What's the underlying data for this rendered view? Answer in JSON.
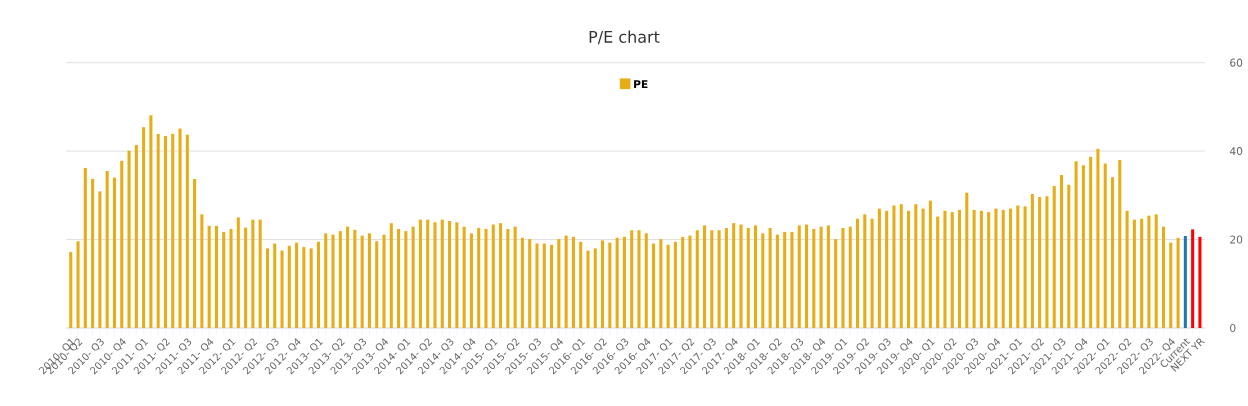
{
  "chart_data": {
    "type": "bar",
    "title": "P/E chart",
    "categories": [
      "2010- Q1",
      "2010- Q2",
      null,
      null,
      "2010- Q3",
      null,
      null,
      "2010- Q4",
      null,
      null,
      "2011- Q1",
      null,
      null,
      "2011- Q2",
      null,
      null,
      "2011- Q3",
      null,
      null,
      "2011- Q4",
      null,
      null,
      "2012- Q1",
      null,
      null,
      "2012- Q2",
      null,
      null,
      "2012- Q3",
      null,
      null,
      "2012- Q4",
      null,
      null,
      "2013- Q1",
      null,
      null,
      "2013- Q2",
      null,
      null,
      "2013- Q3",
      null,
      null,
      "2013- Q4",
      null,
      null,
      "2014- Q1",
      null,
      null,
      "2014- Q2",
      null,
      null,
      "2014- Q3",
      null,
      null,
      "2014- Q4",
      null,
      null,
      "2015- Q1",
      null,
      null,
      "2015- Q2",
      null,
      null,
      "2015- Q3",
      null,
      null,
      "2015- Q4",
      null,
      null,
      "2016- Q1",
      null,
      null,
      "2016- Q2",
      null,
      null,
      "2016- Q3",
      null,
      null,
      "2016- Q4",
      null,
      null,
      "2017- Q1",
      null,
      null,
      "2017- Q2",
      null,
      null,
      "2017- Q3",
      null,
      null,
      "2017- Q4",
      null,
      null,
      "2018- Q1",
      null,
      null,
      "2018- Q2",
      null,
      null,
      "2018- Q3",
      null,
      null,
      "2018- Q4",
      null,
      null,
      "2019- Q1",
      null,
      null,
      "2019- Q2",
      null,
      null,
      "2019- Q3",
      null,
      null,
      "2019- Q4",
      null,
      null,
      "2020- Q1",
      null,
      null,
      "2020- Q2",
      null,
      null,
      "2020- Q3",
      null,
      null,
      "2020- Q4",
      null,
      null,
      "2021- Q1",
      null,
      null,
      "2021- Q2",
      null,
      null,
      "2021- Q3",
      null,
      null,
      "2021- Q4",
      null,
      null,
      "2022- Q1",
      null,
      null,
      "2022- Q2",
      null,
      null,
      "2022- Q3",
      null,
      null,
      "2022- Q4",
      null,
      "Current",
      null,
      "NEXT YR"
    ],
    "series": [
      {
        "name": "PE",
        "color": "#e6ad16",
        "colors": [
          "#e6ad16",
          "#e6ad16",
          "#e6ad16",
          "#e6ad16",
          "#e6ad16",
          "#e6ad16",
          "#e6ad16",
          "#e6ad16",
          "#e6ad16",
          "#e6ad16",
          "#e6ad16",
          "#e6ad16",
          "#e6ad16",
          "#e6ad16",
          "#e6ad16",
          "#e6ad16",
          "#e6ad16",
          "#e6ad16",
          "#e6ad16",
          "#e6ad16",
          "#e6ad16",
          "#e6ad16",
          "#e6ad16",
          "#e6ad16",
          "#e6ad16",
          "#e6ad16",
          "#e6ad16",
          "#e6ad16",
          "#e6ad16",
          "#e6ad16",
          "#e6ad16",
          "#e6ad16",
          "#e6ad16",
          "#e6ad16",
          "#e6ad16",
          "#e6ad16",
          "#e6ad16",
          "#e6ad16",
          "#e6ad16",
          "#e6ad16",
          "#e6ad16",
          "#e6ad16",
          "#e6ad16",
          "#e6ad16",
          "#e6ad16",
          "#e6ad16",
          "#e6ad16",
          "#e6ad16",
          "#e6ad16",
          "#e6ad16",
          "#e6ad16",
          "#e6ad16",
          "#e6ad16",
          "#e6ad16",
          "#e6ad16",
          "#e6ad16",
          "#e6ad16",
          "#e6ad16",
          "#e6ad16",
          "#e6ad16",
          "#e6ad16",
          "#e6ad16",
          "#e6ad16",
          "#e6ad16",
          "#e6ad16",
          "#e6ad16",
          "#e6ad16",
          "#e6ad16",
          "#e6ad16",
          "#e6ad16",
          "#e6ad16",
          "#e6ad16",
          "#e6ad16",
          "#e6ad16",
          "#e6ad16",
          "#e6ad16",
          "#e6ad16",
          "#e6ad16",
          "#e6ad16",
          "#e6ad16",
          "#e6ad16",
          "#e6ad16",
          "#e6ad16",
          "#e6ad16",
          "#e6ad16",
          "#e6ad16",
          "#e6ad16",
          "#e6ad16",
          "#e6ad16",
          "#e6ad16",
          "#e6ad16",
          "#e6ad16",
          "#e6ad16",
          "#e6ad16",
          "#e6ad16",
          "#e6ad16",
          "#e6ad16",
          "#e6ad16",
          "#e6ad16",
          "#e6ad16",
          "#e6ad16",
          "#e6ad16",
          "#e6ad16",
          "#e6ad16",
          "#e6ad16",
          "#e6ad16",
          "#e6ad16",
          "#e6ad16",
          "#e6ad16",
          "#e6ad16",
          "#e6ad16",
          "#e6ad16",
          "#e6ad16",
          "#e6ad16",
          "#e6ad16",
          "#e6ad16",
          "#e6ad16",
          "#e6ad16",
          "#e6ad16",
          "#e6ad16",
          "#e6ad16",
          "#e6ad16",
          "#e6ad16",
          "#e6ad16",
          "#e6ad16",
          "#e6ad16",
          "#e6ad16",
          "#e6ad16",
          "#e6ad16",
          "#e6ad16",
          "#e6ad16",
          "#e6ad16",
          "#e6ad16",
          "#e6ad16",
          "#e6ad16",
          "#e6ad16",
          "#e6ad16",
          "#e6ad16",
          "#e6ad16",
          "#e6ad16",
          "#e6ad16",
          "#e6ad16",
          "#e6ad16",
          "#e6ad16",
          "#e6ad16",
          "#e6ad16",
          "#e6ad16",
          "#e6ad16",
          "#e6ad16",
          "#e6ad16",
          "#e6ad16",
          "#e6ad16",
          "#e6ad16",
          "#1f78b4",
          "#ff0000",
          "#ff0000"
        ],
        "values": [
          17.2,
          19.6,
          36.2,
          33.7,
          30.9,
          35.5,
          34.0,
          37.8,
          40.1,
          41.4,
          45.4,
          48.1,
          43.9,
          43.4,
          43.9,
          45.1,
          43.7,
          33.7,
          25.7,
          23.1,
          23.1,
          21.7,
          22.4,
          25.0,
          22.7,
          24.5,
          24.5,
          18.0,
          19.1,
          17.5,
          18.6,
          19.3,
          18.3,
          18.0,
          19.5,
          21.4,
          21.1,
          21.9,
          22.9,
          22.2,
          20.9,
          21.4,
          19.6,
          21.1,
          23.7,
          22.4,
          21.9,
          22.9,
          24.5,
          24.5,
          23.9,
          24.5,
          24.2,
          23.9,
          22.9,
          21.4,
          22.6,
          22.4,
          23.4,
          23.7,
          22.4,
          22.9,
          20.4,
          20.1,
          19.1,
          19.1,
          18.8,
          20.1,
          20.9,
          20.6,
          19.5,
          17.5,
          18.0,
          19.8,
          19.3,
          20.4,
          20.6,
          22.1,
          22.1,
          21.4,
          19.1,
          20.1,
          18.8,
          19.5,
          20.6,
          20.9,
          22.1,
          23.2,
          22.1,
          22.1,
          22.6,
          23.7,
          23.4,
          22.6,
          23.2,
          21.4,
          22.6,
          21.1,
          21.7,
          21.7,
          23.2,
          23.4,
          22.4,
          22.9,
          23.2,
          20.1,
          22.6,
          22.9,
          24.7,
          25.7,
          24.7,
          27.0,
          26.5,
          27.7,
          28.0,
          26.5,
          28.0,
          27.0,
          28.8,
          25.2,
          26.5,
          26.2,
          26.7,
          30.6,
          26.7,
          26.5,
          26.2,
          27.0,
          26.7,
          27.0,
          27.7,
          27.5,
          30.3,
          29.6,
          29.8,
          32.1,
          34.6,
          32.4,
          37.7,
          36.8,
          38.7,
          40.5,
          37.2,
          34.1,
          38.0,
          26.5,
          24.5,
          24.7,
          25.4,
          25.7,
          22.9,
          19.3,
          20.4,
          20.8,
          22.3,
          20.6
        ]
      }
    ],
    "ylim": [
      0,
      60
    ],
    "yticks": [
      0,
      20,
      40,
      60
    ],
    "grid": "y",
    "legend": "top"
  }
}
